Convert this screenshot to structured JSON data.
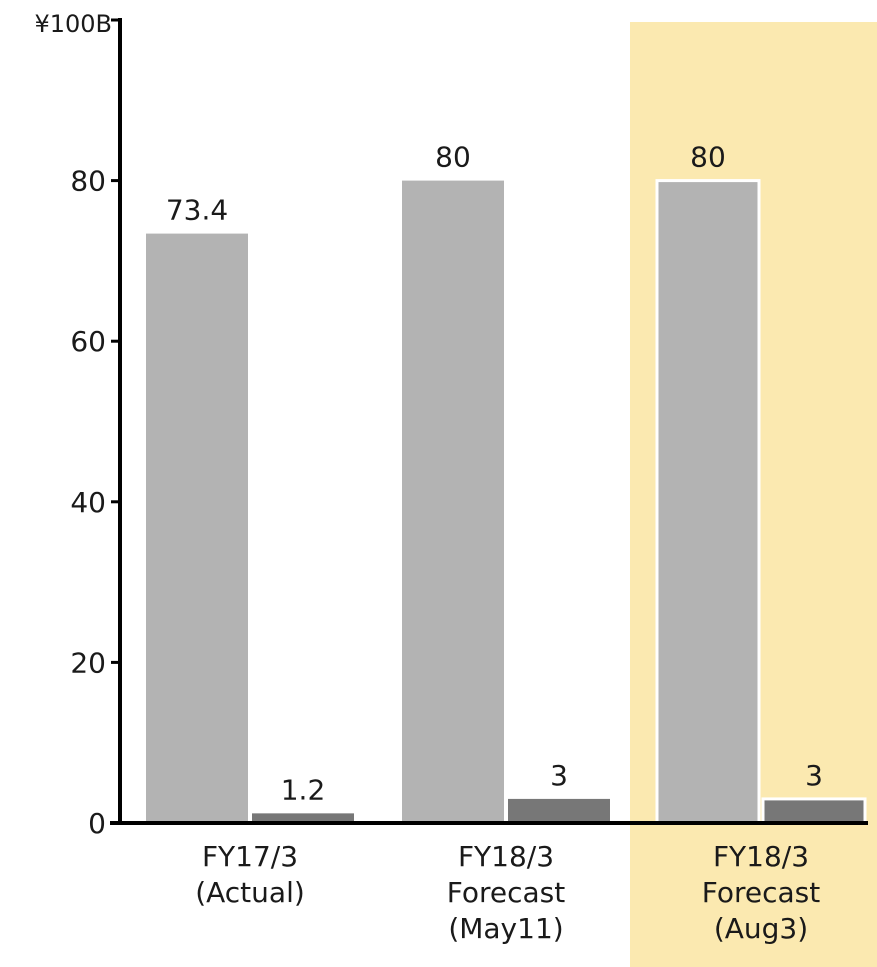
{
  "chart_data": {
    "type": "bar",
    "unit_label": "¥100B",
    "categories": [
      [
        "FY17/3",
        "(Actual)"
      ],
      [
        "FY18/3",
        "Forecast",
        "(May11)"
      ],
      [
        "FY18/3",
        "Forecast",
        "(Aug3)"
      ]
    ],
    "series": [
      {
        "values": [
          73.4,
          80,
          80
        ],
        "color": "#b3b3b3"
      },
      {
        "values": [
          1.2,
          3,
          3
        ],
        "color": "#777777"
      }
    ],
    "value_labels": [
      [
        "73.4",
        "80",
        "80"
      ],
      [
        "1.2",
        "3",
        "3"
      ]
    ],
    "y_ticks": [
      "0",
      "20",
      "40",
      "60",
      "80"
    ],
    "ylim": [
      0,
      100
    ],
    "highlighted_category": 2,
    "highlight_color": "#fbe9b0",
    "grid": false
  }
}
